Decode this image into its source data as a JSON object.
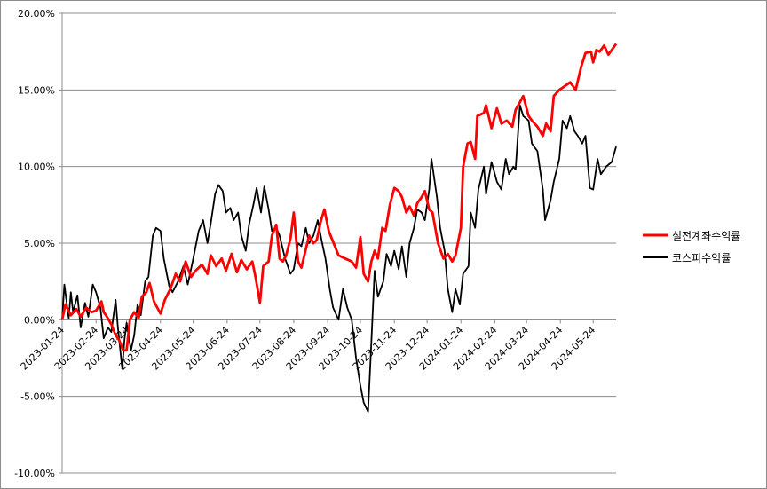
{
  "chart_data": {
    "type": "line",
    "title": "",
    "xlabel": "",
    "ylabel": "",
    "ylim": [
      -10,
      20
    ],
    "y_ticks": [
      "20.00%",
      "15.00%",
      "10.00%",
      "5.00%",
      "0.00%",
      "-5.00%",
      "-10.00%"
    ],
    "x_ticks": [
      "2023-01-24",
      "2023-02-24",
      "2023-03-24",
      "2023-04-24",
      "2023-05-24",
      "2023-06-24",
      "2023-07-24",
      "2023-08-24",
      "2023-09-24",
      "2023-10-24",
      "2023-11-24",
      "2023-12-24",
      "2024-01-24",
      "2024-02-24",
      "2024-03-24",
      "2024-04-24",
      "2024-05-24"
    ],
    "x_range": [
      "2023-01-24",
      "2024-06-14"
    ],
    "grid": "horizontal",
    "legend": "right",
    "series": [
      {
        "name": "실전계좌수익률",
        "color": "#ff0000",
        "points": [
          [
            "2023-01-24",
            0.0
          ],
          [
            "2023-01-27",
            1.0
          ],
          [
            "2023-02-01",
            0.3
          ],
          [
            "2023-02-06",
            0.7
          ],
          [
            "2023-02-10",
            0.2
          ],
          [
            "2023-02-15",
            0.8
          ],
          [
            "2023-02-20",
            0.5
          ],
          [
            "2023-02-24",
            0.6
          ],
          [
            "2023-03-01",
            1.2
          ],
          [
            "2023-03-03",
            0.5
          ],
          [
            "2023-03-06",
            0.2
          ],
          [
            "2023-03-10",
            -0.3
          ],
          [
            "2023-03-14",
            -1.0
          ],
          [
            "2023-03-17",
            -1.3
          ],
          [
            "2023-03-21",
            -2.0
          ],
          [
            "2023-03-24",
            -2.0
          ],
          [
            "2023-03-27",
            0.0
          ],
          [
            "2023-03-31",
            0.5
          ],
          [
            "2023-04-04",
            0.1
          ],
          [
            "2023-04-07",
            1.5
          ],
          [
            "2023-04-11",
            1.8
          ],
          [
            "2023-04-14",
            2.4
          ],
          [
            "2023-04-18",
            1.2
          ],
          [
            "2023-04-21",
            0.8
          ],
          [
            "2023-04-24",
            0.4
          ],
          [
            "2023-04-28",
            1.3
          ],
          [
            "2023-05-03",
            2.0
          ],
          [
            "2023-05-08",
            3.0
          ],
          [
            "2023-05-12",
            2.5
          ],
          [
            "2023-05-17",
            3.8
          ],
          [
            "2023-05-22",
            2.8
          ],
          [
            "2023-05-26",
            3.2
          ],
          [
            "2023-06-01",
            3.6
          ],
          [
            "2023-06-06",
            3.0
          ],
          [
            "2023-06-09",
            4.2
          ],
          [
            "2023-06-14",
            3.5
          ],
          [
            "2023-06-19",
            4.0
          ],
          [
            "2023-06-23",
            3.2
          ],
          [
            "2023-06-28",
            4.3
          ],
          [
            "2023-07-03",
            3.1
          ],
          [
            "2023-07-07",
            3.9
          ],
          [
            "2023-07-12",
            3.3
          ],
          [
            "2023-07-17",
            3.8
          ],
          [
            "2023-07-20",
            2.8
          ],
          [
            "2023-07-24",
            1.1
          ],
          [
            "2023-07-27",
            3.5
          ],
          [
            "2023-08-01",
            3.8
          ],
          [
            "2023-08-04",
            5.5
          ],
          [
            "2023-08-08",
            6.2
          ],
          [
            "2023-08-11",
            4.0
          ],
          [
            "2023-08-14",
            3.8
          ],
          [
            "2023-08-17",
            4.2
          ],
          [
            "2023-08-21",
            5.3
          ],
          [
            "2023-08-24",
            7.0
          ],
          [
            "2023-08-28",
            3.8
          ],
          [
            "2023-08-31",
            3.4
          ],
          [
            "2023-09-04",
            4.6
          ],
          [
            "2023-09-07",
            5.5
          ],
          [
            "2023-09-11",
            5.0
          ],
          [
            "2023-09-14",
            5.2
          ],
          [
            "2023-09-18",
            6.5
          ],
          [
            "2023-09-21",
            7.2
          ],
          [
            "2023-09-25",
            5.8
          ],
          [
            "2023-10-04",
            4.2
          ],
          [
            "2023-10-10",
            4.0
          ],
          [
            "2023-10-16",
            3.8
          ],
          [
            "2023-10-20",
            3.4
          ],
          [
            "2023-10-24",
            5.4
          ],
          [
            "2023-10-27",
            3.0
          ],
          [
            "2023-10-31",
            2.5
          ],
          [
            "2023-11-03",
            3.8
          ],
          [
            "2023-11-06",
            4.5
          ],
          [
            "2023-11-09",
            4.0
          ],
          [
            "2023-11-13",
            6.0
          ],
          [
            "2023-11-16",
            5.8
          ],
          [
            "2023-11-20",
            7.5
          ],
          [
            "2023-11-24",
            8.6
          ],
          [
            "2023-11-28",
            8.4
          ],
          [
            "2023-12-01",
            8.0
          ],
          [
            "2023-12-05",
            7.0
          ],
          [
            "2023-12-08",
            7.4
          ],
          [
            "2023-12-12",
            6.8
          ],
          [
            "2023-12-15",
            7.6
          ],
          [
            "2023-12-19",
            8.0
          ],
          [
            "2023-12-22",
            8.4
          ],
          [
            "2023-12-26",
            7.2
          ],
          [
            "2023-12-29",
            7.0
          ],
          [
            "2024-01-03",
            5.0
          ],
          [
            "2024-01-08",
            4.0
          ],
          [
            "2024-01-12",
            4.3
          ],
          [
            "2024-01-16",
            3.8
          ],
          [
            "2024-01-19",
            4.2
          ],
          [
            "2024-01-24",
            6.0
          ],
          [
            "2024-01-26",
            10.0
          ],
          [
            "2024-01-30",
            11.5
          ],
          [
            "2024-02-02",
            11.6
          ],
          [
            "2024-02-06",
            10.5
          ],
          [
            "2024-02-08",
            13.3
          ],
          [
            "2024-02-14",
            13.5
          ],
          [
            "2024-02-16",
            14.0
          ],
          [
            "2024-02-21",
            12.5
          ],
          [
            "2024-02-26",
            13.8
          ],
          [
            "2024-03-01",
            12.8
          ],
          [
            "2024-03-06",
            13.0
          ],
          [
            "2024-03-11",
            12.6
          ],
          [
            "2024-03-14",
            13.7
          ],
          [
            "2024-03-18",
            14.2
          ],
          [
            "2024-03-21",
            14.6
          ],
          [
            "2024-03-26",
            13.3
          ],
          [
            "2024-03-29",
            13.0
          ],
          [
            "2024-04-03",
            12.6
          ],
          [
            "2024-04-08",
            12.0
          ],
          [
            "2024-04-11",
            12.8
          ],
          [
            "2024-04-15",
            12.3
          ],
          [
            "2024-04-18",
            14.6
          ],
          [
            "2024-04-23",
            15.0
          ],
          [
            "2024-04-29",
            15.3
          ],
          [
            "2024-05-03",
            15.5
          ],
          [
            "2024-05-08",
            15.0
          ],
          [
            "2024-05-13",
            16.5
          ],
          [
            "2024-05-17",
            17.4
          ],
          [
            "2024-05-22",
            17.5
          ],
          [
            "2024-05-24",
            16.8
          ],
          [
            "2024-05-27",
            17.6
          ],
          [
            "2024-05-30",
            17.5
          ],
          [
            "2024-06-03",
            17.9
          ],
          [
            "2024-06-07",
            17.3
          ],
          [
            "2024-06-14",
            18.0
          ]
        ]
      },
      {
        "name": "코스피수익률",
        "color": "#000000",
        "points": [
          [
            "2023-01-24",
            0.0
          ],
          [
            "2023-01-26",
            2.3
          ],
          [
            "2023-01-30",
            0.1
          ],
          [
            "2023-02-01",
            1.8
          ],
          [
            "2023-02-03",
            0.5
          ],
          [
            "2023-02-07",
            1.6
          ],
          [
            "2023-02-10",
            -0.5
          ],
          [
            "2023-02-14",
            1.1
          ],
          [
            "2023-02-17",
            0.2
          ],
          [
            "2023-02-21",
            2.3
          ],
          [
            "2023-02-24",
            1.8
          ],
          [
            "2023-02-28",
            0.8
          ],
          [
            "2023-03-03",
            -1.2
          ],
          [
            "2023-03-07",
            -0.5
          ],
          [
            "2023-03-10",
            -0.8
          ],
          [
            "2023-03-14",
            1.3
          ],
          [
            "2023-03-16",
            -0.5
          ],
          [
            "2023-03-20",
            -3.2
          ],
          [
            "2023-03-22",
            -1.3
          ],
          [
            "2023-03-24",
            -0.2
          ],
          [
            "2023-03-28",
            -2.0
          ],
          [
            "2023-03-31",
            -1.0
          ],
          [
            "2023-04-03",
            1.0
          ],
          [
            "2023-04-06",
            0.3
          ],
          [
            "2023-04-10",
            2.5
          ],
          [
            "2023-04-13",
            2.8
          ],
          [
            "2023-04-17",
            5.5
          ],
          [
            "2023-04-20",
            6.0
          ],
          [
            "2023-04-24",
            5.8
          ],
          [
            "2023-04-27",
            4.0
          ],
          [
            "2023-05-02",
            2.2
          ],
          [
            "2023-05-05",
            1.8
          ],
          [
            "2023-05-10",
            2.5
          ],
          [
            "2023-05-15",
            3.5
          ],
          [
            "2023-05-19",
            2.3
          ],
          [
            "2023-05-24",
            4.0
          ],
          [
            "2023-05-29",
            5.8
          ],
          [
            "2023-06-02",
            6.5
          ],
          [
            "2023-06-06",
            5.0
          ],
          [
            "2023-06-09",
            6.3
          ],
          [
            "2023-06-13",
            8.2
          ],
          [
            "2023-06-16",
            8.8
          ],
          [
            "2023-06-20",
            8.4
          ],
          [
            "2023-06-23",
            7.0
          ],
          [
            "2023-06-27",
            7.3
          ],
          [
            "2023-06-30",
            6.5
          ],
          [
            "2023-07-04",
            7.0
          ],
          [
            "2023-07-07",
            5.5
          ],
          [
            "2023-07-11",
            4.5
          ],
          [
            "2023-07-14",
            6.2
          ],
          [
            "2023-07-18",
            7.5
          ],
          [
            "2023-07-21",
            8.6
          ],
          [
            "2023-07-25",
            7.0
          ],
          [
            "2023-07-28",
            8.7
          ],
          [
            "2023-08-01",
            7.2
          ],
          [
            "2023-08-04",
            5.8
          ],
          [
            "2023-08-08",
            6.0
          ],
          [
            "2023-08-11",
            5.5
          ],
          [
            "2023-08-16",
            4.0
          ],
          [
            "2023-08-21",
            3.0
          ],
          [
            "2023-08-24",
            3.3
          ],
          [
            "2023-08-28",
            5.0
          ],
          [
            "2023-08-31",
            4.8
          ],
          [
            "2023-09-04",
            6.0
          ],
          [
            "2023-09-07",
            5.0
          ],
          [
            "2023-09-11",
            5.5
          ],
          [
            "2023-09-15",
            6.5
          ],
          [
            "2023-09-19",
            5.0
          ],
          [
            "2023-09-22",
            4.0
          ],
          [
            "2023-09-26",
            2.0
          ],
          [
            "2023-09-29",
            0.8
          ],
          [
            "2023-10-04",
            0.0
          ],
          [
            "2023-10-08",
            2.0
          ],
          [
            "2023-10-12",
            0.8
          ],
          [
            "2023-10-16",
            0.0
          ],
          [
            "2023-10-20",
            -2.5
          ],
          [
            "2023-10-24",
            -4.3
          ],
          [
            "2023-10-27",
            -5.4
          ],
          [
            "2023-10-31",
            -6.0
          ],
          [
            "2023-11-02",
            -3.0
          ],
          [
            "2023-11-06",
            3.2
          ],
          [
            "2023-11-09",
            1.5
          ],
          [
            "2023-11-14",
            2.5
          ],
          [
            "2023-11-17",
            4.3
          ],
          [
            "2023-11-21",
            3.5
          ],
          [
            "2023-11-24",
            4.5
          ],
          [
            "2023-11-28",
            3.3
          ],
          [
            "2023-12-01",
            4.8
          ],
          [
            "2023-12-05",
            2.8
          ],
          [
            "2023-12-08",
            5.0
          ],
          [
            "2023-12-12",
            6.0
          ],
          [
            "2023-12-15",
            7.2
          ],
          [
            "2023-12-19",
            7.0
          ],
          [
            "2023-12-22",
            6.5
          ],
          [
            "2023-12-26",
            8.5
          ],
          [
            "2023-12-28",
            10.5
          ],
          [
            "2024-01-02",
            8.0
          ],
          [
            "2024-01-05",
            6.0
          ],
          [
            "2024-01-09",
            4.5
          ],
          [
            "2024-01-12",
            2.0
          ],
          [
            "2024-01-16",
            0.5
          ],
          [
            "2024-01-19",
            2.0
          ],
          [
            "2024-01-23",
            1.0
          ],
          [
            "2024-01-26",
            3.0
          ],
          [
            "2024-01-31",
            3.5
          ],
          [
            "2024-02-02",
            7.0
          ],
          [
            "2024-02-06",
            6.0
          ],
          [
            "2024-02-09",
            8.5
          ],
          [
            "2024-02-14",
            10.0
          ],
          [
            "2024-02-16",
            8.2
          ],
          [
            "2024-02-21",
            10.3
          ],
          [
            "2024-02-26",
            9.0
          ],
          [
            "2024-03-01",
            8.5
          ],
          [
            "2024-03-05",
            10.5
          ],
          [
            "2024-03-08",
            9.5
          ],
          [
            "2024-03-12",
            10.0
          ],
          [
            "2024-03-14",
            9.8
          ],
          [
            "2024-03-18",
            14.0
          ],
          [
            "2024-03-21",
            13.3
          ],
          [
            "2024-03-26",
            13.0
          ],
          [
            "2024-03-29",
            11.5
          ],
          [
            "2024-04-03",
            11.0
          ],
          [
            "2024-04-08",
            8.5
          ],
          [
            "2024-04-10",
            6.5
          ],
          [
            "2024-04-15",
            7.8
          ],
          [
            "2024-04-18",
            9.0
          ],
          [
            "2024-04-23",
            10.5
          ],
          [
            "2024-04-26",
            13.0
          ],
          [
            "2024-04-30",
            12.5
          ],
          [
            "2024-05-03",
            13.3
          ],
          [
            "2024-05-07",
            12.3
          ],
          [
            "2024-05-10",
            12.0
          ],
          [
            "2024-05-14",
            11.5
          ],
          [
            "2024-05-17",
            12.0
          ],
          [
            "2024-05-21",
            8.6
          ],
          [
            "2024-05-24",
            8.5
          ],
          [
            "2024-05-28",
            10.5
          ],
          [
            "2024-05-31",
            9.5
          ],
          [
            "2024-06-05",
            10.0
          ],
          [
            "2024-06-10",
            10.3
          ],
          [
            "2024-06-14",
            11.3
          ]
        ]
      }
    ]
  }
}
